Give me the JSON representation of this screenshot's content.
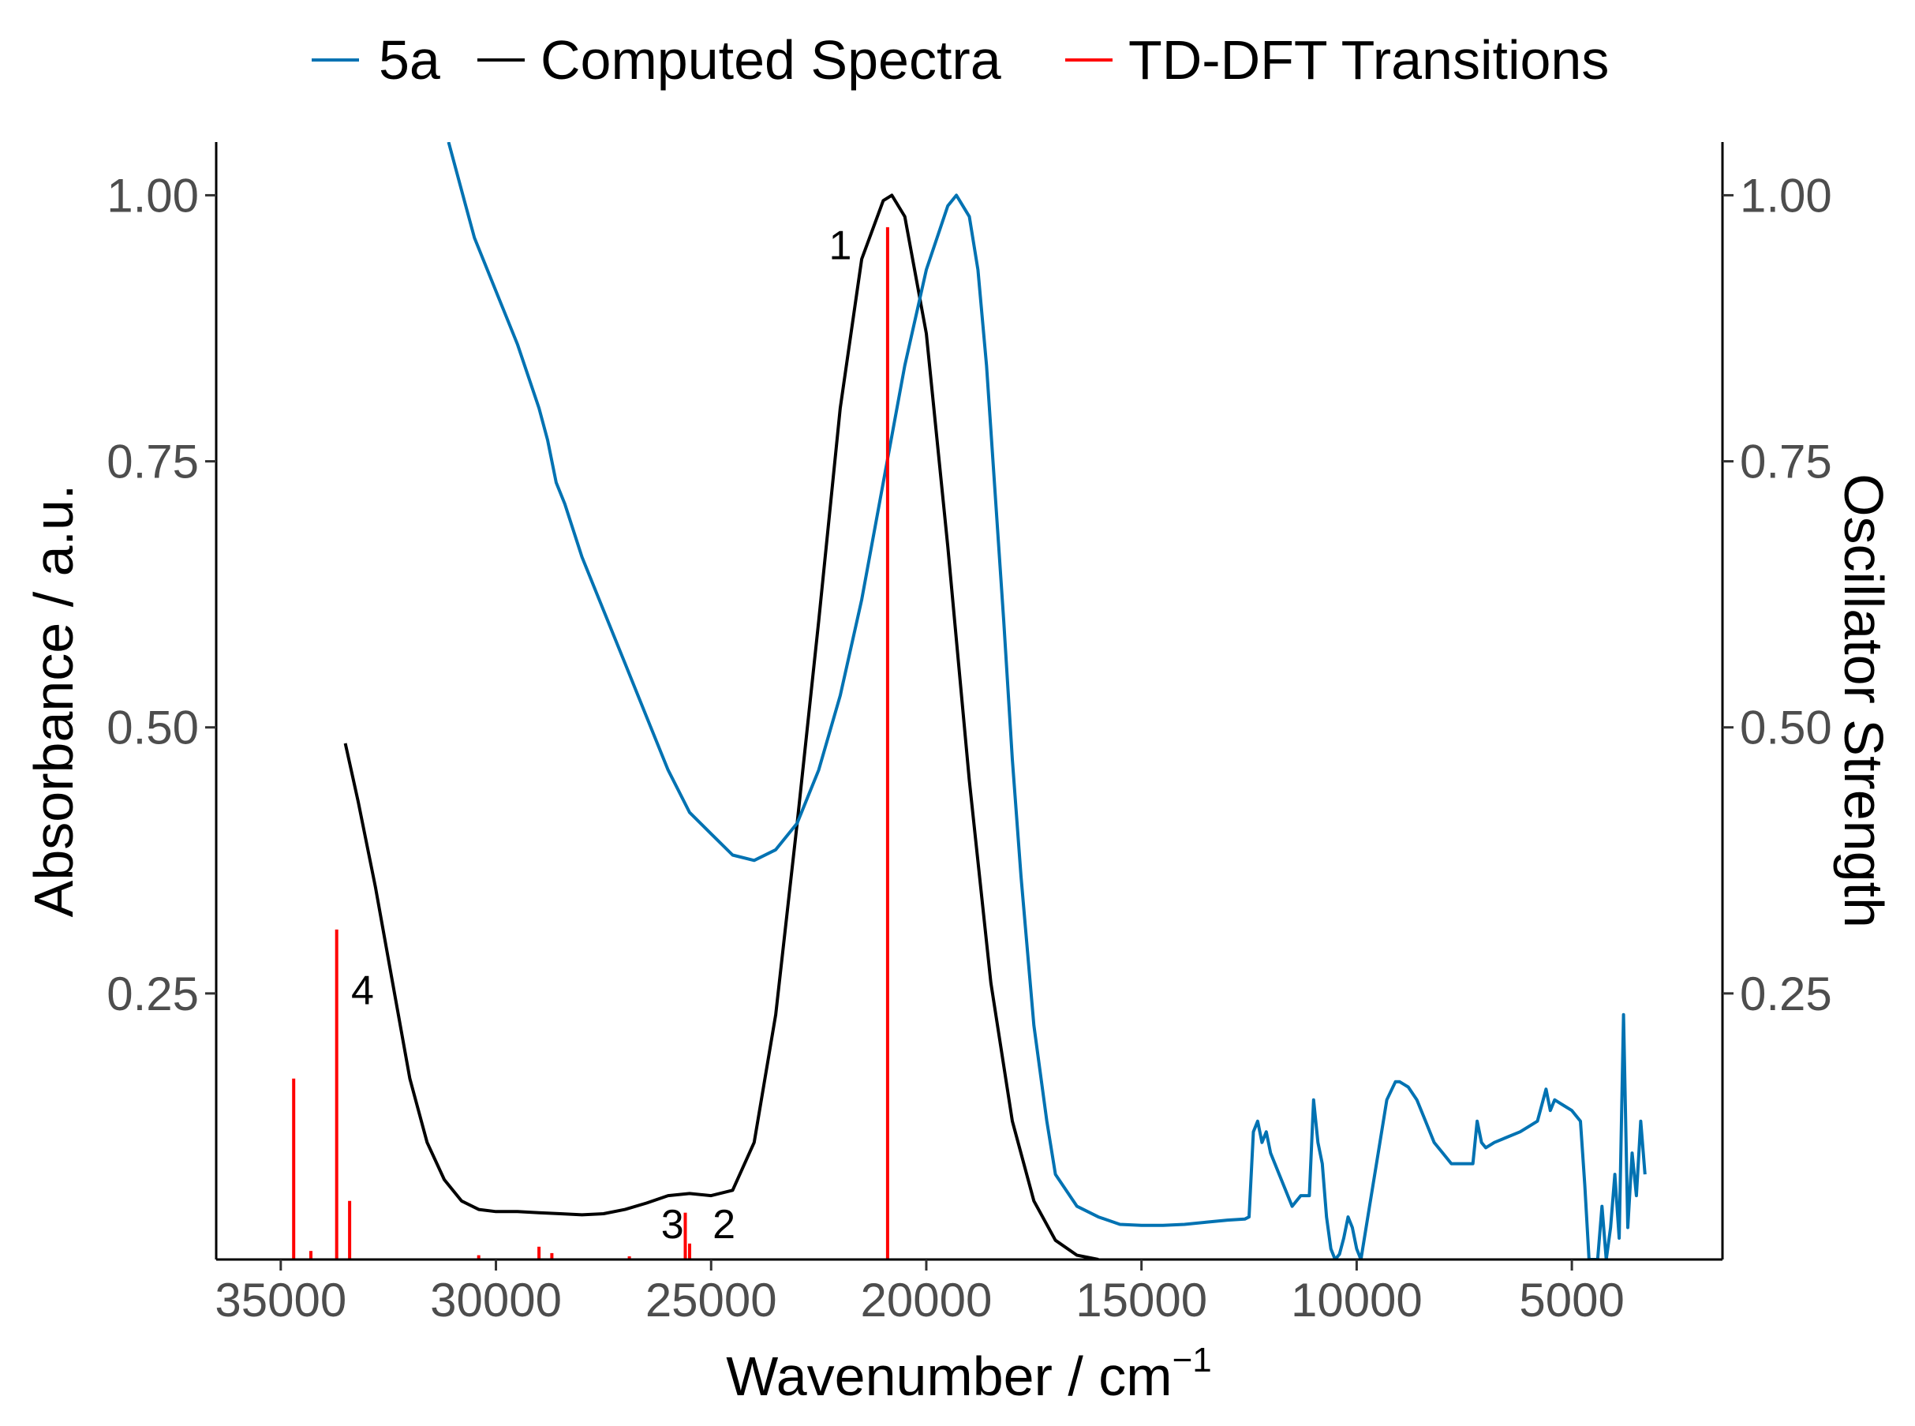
{
  "chart_data": {
    "type": "line",
    "title": "",
    "xlabel": "Wavenumber / cm",
    "xlabel_superscript": "−1",
    "ylabel_left": "Absorbance / a.u.",
    "ylabel_right": "Oscillator Strength",
    "xlim": [
      36500,
      1500
    ],
    "x_reversed": true,
    "ylim_left": [
      0,
      1.05
    ],
    "ylim_right": [
      0,
      1.05
    ],
    "x_ticks": [
      35000,
      30000,
      25000,
      20000,
      15000,
      10000,
      5000
    ],
    "x_tick_labels": [
      "35000",
      "30000",
      "25000",
      "20000",
      "15000",
      "10000",
      "5000"
    ],
    "y_ticks": [
      0.25,
      0.5,
      0.75,
      1.0
    ],
    "y_tick_labels": [
      "0.25",
      "0.50",
      "0.75",
      "1.00"
    ],
    "legend": {
      "position": "top",
      "entries": [
        {
          "name": "5a",
          "color": "#0072B2"
        },
        {
          "name": "Computed Spectra",
          "color": "#000000"
        },
        {
          "name": "TD-DFT Transitions",
          "color": "#FF0000"
        }
      ]
    },
    "series": [
      {
        "name": "5a",
        "color": "#0072B2",
        "x": [
          31100,
          30700,
          30500,
          30000,
          29500,
          29000,
          28800,
          28600,
          28400,
          28000,
          27500,
          27000,
          26500,
          26000,
          25500,
          25000,
          24500,
          24000,
          23500,
          23000,
          22500,
          22000,
          21500,
          21000,
          20500,
          20000,
          19500,
          19300,
          19000,
          18800,
          18600,
          18400,
          18200,
          18000,
          17800,
          17500,
          17200,
          17000,
          16500,
          16000,
          15500,
          15000,
          14500,
          14000,
          13500,
          13000,
          12600,
          12500,
          12400,
          12300,
          12200,
          12100,
          12000,
          11800,
          11500,
          11300,
          11100,
          11000,
          10900,
          10800,
          10700,
          10600,
          10500,
          10400,
          10300,
          10200,
          10100,
          10000,
          9900,
          9700,
          9500,
          9300,
          9100,
          9000,
          8800,
          8600,
          8400,
          8200,
          8000,
          7800,
          7500,
          7300,
          7200,
          7100,
          7000,
          6800,
          6500,
          6200,
          6000,
          5800,
          5600,
          5500,
          5400,
          5200,
          5000,
          4800,
          4700,
          4600,
          4500,
          4400,
          4300,
          4200,
          4100,
          4000,
          3900,
          3800,
          3700,
          3600,
          3500,
          3400,
          3300
        ],
        "y": [
          1.05,
          0.99,
          0.96,
          0.91,
          0.86,
          0.8,
          0.77,
          0.73,
          0.71,
          0.66,
          0.61,
          0.56,
          0.51,
          0.46,
          0.42,
          0.4,
          0.38,
          0.375,
          0.385,
          0.41,
          0.46,
          0.53,
          0.62,
          0.73,
          0.84,
          0.93,
          0.99,
          1.0,
          0.98,
          0.93,
          0.84,
          0.72,
          0.6,
          0.47,
          0.36,
          0.22,
          0.13,
          0.08,
          0.05,
          0.04,
          0.033,
          0.032,
          0.032,
          0.033,
          0.035,
          0.037,
          0.038,
          0.04,
          0.12,
          0.13,
          0.11,
          0.12,
          0.1,
          0.08,
          0.05,
          0.06,
          0.06,
          0.15,
          0.11,
          0.09,
          0.04,
          0.01,
          0.0,
          0.005,
          0.02,
          0.04,
          0.03,
          0.01,
          0.0,
          0.05,
          0.1,
          0.15,
          0.167,
          0.167,
          0.162,
          0.15,
          0.13,
          0.11,
          0.1,
          0.09,
          0.09,
          0.09,
          0.13,
          0.11,
          0.105,
          0.11,
          0.115,
          0.12,
          0.125,
          0.13,
          0.16,
          0.14,
          0.15,
          0.145,
          0.14,
          0.13,
          0.07,
          0.0,
          0.0,
          0.0,
          0.05,
          0.0,
          0.03,
          0.08,
          0.02,
          0.23,
          0.03,
          0.1,
          0.06,
          0.13,
          0.08
        ]
      },
      {
        "name": "Computed Spectra",
        "color": "#000000",
        "x": [
          33500,
          33200,
          32800,
          32400,
          32000,
          31600,
          31200,
          30800,
          30400,
          30000,
          29500,
          29000,
          28500,
          28000,
          27500,
          27000,
          26500,
          26000,
          25500,
          25000,
          24500,
          24000,
          23500,
          23000,
          22500,
          22000,
          21500,
          21000,
          20800,
          20500,
          20000,
          19500,
          19000,
          18500,
          18000,
          17500,
          17000,
          16500,
          16000
        ],
        "y": [
          0.485,
          0.43,
          0.35,
          0.26,
          0.17,
          0.11,
          0.075,
          0.055,
          0.047,
          0.045,
          0.045,
          0.044,
          0.043,
          0.042,
          0.043,
          0.047,
          0.053,
          0.06,
          0.062,
          0.06,
          0.065,
          0.11,
          0.23,
          0.41,
          0.6,
          0.8,
          0.94,
          0.995,
          1.0,
          0.98,
          0.87,
          0.67,
          0.45,
          0.26,
          0.13,
          0.055,
          0.018,
          0.004,
          0.0
        ]
      }
    ],
    "transitions": {
      "name": "TD-DFT Transitions",
      "color": "#FF0000",
      "x": [
        34700,
        34300,
        33700,
        33400,
        30400,
        29000,
        28700,
        26900,
        25600,
        25500,
        20900
      ],
      "y": [
        0.17,
        0.008,
        0.31,
        0.055,
        0.004,
        0.012,
        0.006,
        0.003,
        0.044,
        0.015,
        0.97
      ]
    },
    "annotations": [
      {
        "text": "1",
        "x": 22000,
        "y": 0.94
      },
      {
        "text": "2",
        "x": 24700,
        "y": 0.02
      },
      {
        "text": "3",
        "x": 25900,
        "y": 0.02
      },
      {
        "text": "4",
        "x": 33100,
        "y": 0.24
      }
    ]
  }
}
